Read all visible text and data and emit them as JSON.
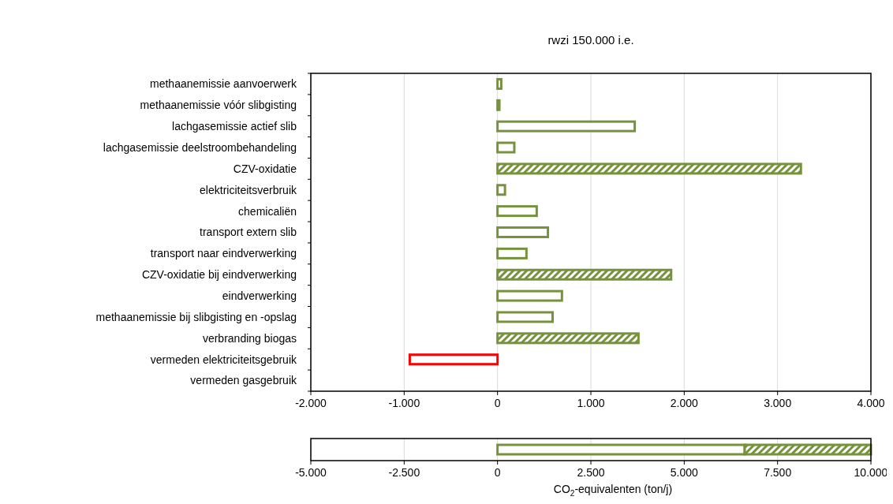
{
  "chart_data": [
    {
      "type": "bar",
      "title": "rwzi 150.000 i.e.",
      "orientation": "horizontal",
      "stacked": true,
      "grid": "x",
      "categories": [
        "methaanemissie aanvoerwerk",
        "methaanemissie vóór slibgisting",
        "lachgasemissie actief slib",
        "lachgasemissie deelstroombehandeling",
        "CZV-oxidatie",
        "elektriciteitsverbruik",
        "chemicaliën",
        "transport extern slib",
        "transport naar eindverwerking",
        "CZV-oxidatie bij eindverwerking",
        "eindverwerking",
        "methaanemissie bij slibgisting en -opslag",
        "verbranding biogas",
        "vermeden elektriciteitsgebruik",
        "vermeden gasgebruik"
      ],
      "series": [
        {
          "color": "#76923c",
          "colors": [
            "#76923c",
            "#76923c",
            "#76923c",
            "#76923c",
            "#76923c",
            "#76923c",
            "#76923c",
            "#76923c",
            "#76923c",
            "#76923c",
            "#76923c",
            "#76923c",
            "#76923c",
            "#ff0000",
            "#76923c"
          ],
          "values": [
            40,
            20,
            1470,
            180,
            null,
            80,
            420,
            540,
            310,
            null,
            690,
            590,
            null,
            -940,
            null
          ]
        },
        {
          "color": "#76923c",
          "values": [
            null,
            null,
            null,
            null,
            3250,
            null,
            null,
            null,
            null,
            1860,
            null,
            null,
            1510,
            null,
            null
          ]
        }
      ],
      "xlim": [
        -2000,
        4000
      ],
      "xticks": [
        {
          "value": -2000,
          "label": "-2.000"
        },
        {
          "value": -1000,
          "label": "-1.000"
        },
        {
          "value": 0,
          "label": "0"
        },
        {
          "value": 1000,
          "label": "1.000"
        },
        {
          "value": 2000,
          "label": "2.000"
        },
        {
          "value": 3000,
          "label": "3.000"
        },
        {
          "value": 4000,
          "label": "4.000"
        }
      ]
    },
    {
      "type": "bar",
      "orientation": "horizontal",
      "stacked": true,
      "grid": "x",
      "tick_labels": "x",
      "categories": [
        null
      ],
      "xlabel": "CO$_{2}$-equivalenten  (ton/j)",
      "series": [
        {
          "color": "#76923c",
          "values": [
            6620
          ]
        },
        {
          "color": "#76923c",
          "values": [
            3380
          ]
        }
      ],
      "xlim": [
        -5000,
        10000
      ],
      "xticks": [
        {
          "value": -5000,
          "label": "-5.000"
        },
        {
          "value": -2500,
          "label": "-2.500"
        },
        {
          "value": 0,
          "label": "0"
        },
        {
          "value": 2500,
          "label": "2.500"
        },
        {
          "value": 5000,
          "label": "5.000"
        },
        {
          "value": 7500,
          "label": "7.500"
        },
        {
          "value": 10000,
          "label": "10.000"
        }
      ]
    }
  ]
}
